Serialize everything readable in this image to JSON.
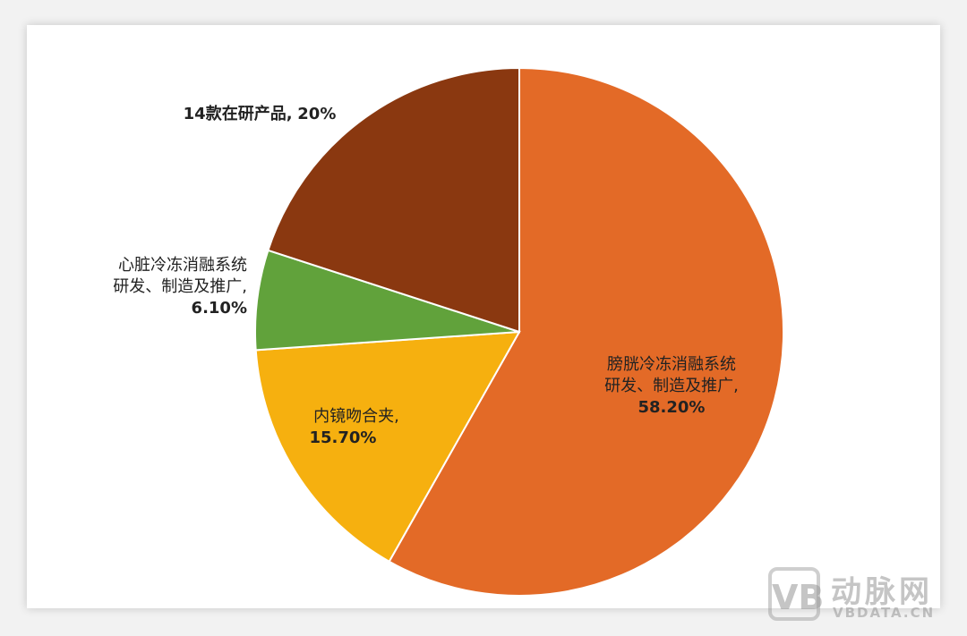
{
  "chart_data": {
    "type": "pie",
    "categories": [
      "膀胱冷冻消融系统研发、制造及推广,",
      "内镜吻合夹,",
      "心脏冷冻消融系统研发、制造及推广,",
      "14款在研产品,"
    ],
    "values": [
      58.2,
      15.7,
      6.1,
      20
    ],
    "value_labels": [
      "58.20%",
      "15.70%",
      "6.10%",
      "20%"
    ],
    "colors": [
      "#e36a27",
      "#f6b00f",
      "#61a23b",
      "#8a3810"
    ]
  },
  "watermark": {
    "name": "动脉网",
    "site": "VBDATA.CN"
  }
}
